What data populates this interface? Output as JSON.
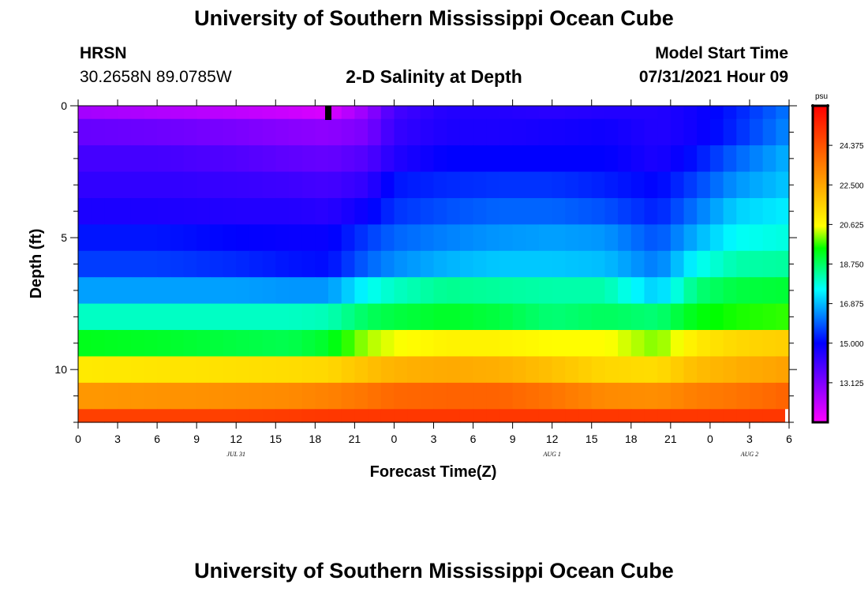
{
  "header": {
    "title": "University of Southern Mississippi Ocean Cube",
    "station": "HRSN",
    "coords": "30.2658N  89.0785W",
    "subtitle": "2-D Salinity at Depth",
    "model_start_label": "Model Start Time",
    "model_start_value": "07/31/2021 Hour 09"
  },
  "footer": {
    "title": "University of Southern Mississippi Ocean Cube"
  },
  "chart_data": {
    "type": "heatmap",
    "xlabel": "Forecast Time(Z)",
    "ylabel": "Depth (ft)",
    "x_range_hours": [
      0,
      54
    ],
    "x_tick_labels": [
      "0",
      "3",
      "6",
      "9",
      "12",
      "15",
      "18",
      "21",
      "0",
      "3",
      "6",
      "9",
      "12",
      "15",
      "18",
      "21",
      "0",
      "3",
      "6"
    ],
    "date_labels": [
      {
        "hour": 12,
        "label": "JUL 31"
      },
      {
        "hour": 36,
        "label": "AUG 1"
      },
      {
        "hour": 51,
        "label": "AUG 2"
      }
    ],
    "y_range": [
      0,
      12
    ],
    "y_ticks": [
      0,
      5,
      10
    ],
    "current_time_hour": 19,
    "depth_levels": [
      0.25,
      1.5,
      2.5,
      3.5,
      4.5,
      5.5,
      6.5,
      7.5,
      8.5,
      9.5,
      10.5,
      11.5
    ],
    "salinity_keyframes": {
      "hours": [
        0,
        6,
        12,
        16,
        19,
        22,
        24,
        28,
        32,
        36,
        40,
        44,
        47,
        50,
        54
      ],
      "rows": [
        [
          12.6,
          12.4,
          12.2,
          12.0,
          11.8,
          12.8,
          14.0,
          14.5,
          14.5,
          14.4,
          14.5,
          14.5,
          14.8,
          15.3,
          16.2
        ],
        [
          13.5,
          13.4,
          13.2,
          13.0,
          12.9,
          13.2,
          14.2,
          14.6,
          14.6,
          14.7,
          14.8,
          14.5,
          14.8,
          15.4,
          16.4
        ],
        [
          14.0,
          14.0,
          13.8,
          13.6,
          13.5,
          13.8,
          14.5,
          15.0,
          15.0,
          15.0,
          15.0,
          14.6,
          15.2,
          16.0,
          16.8
        ],
        [
          14.3,
          14.3,
          14.2,
          14.1,
          14.0,
          14.3,
          15.2,
          15.4,
          15.5,
          15.5,
          15.3,
          15.0,
          15.7,
          16.5,
          17.0
        ],
        [
          14.6,
          14.6,
          14.5,
          14.5,
          14.4,
          14.9,
          15.5,
          15.8,
          16.0,
          16.0,
          15.8,
          15.3,
          16.2,
          17.1,
          17.4
        ],
        [
          15.2,
          15.2,
          15.0,
          14.9,
          14.9,
          15.6,
          16.0,
          16.3,
          16.5,
          16.6,
          16.5,
          15.8,
          16.8,
          17.6,
          17.8
        ],
        [
          15.6,
          15.6,
          15.4,
          15.2,
          15.1,
          16.0,
          16.4,
          16.8,
          17.0,
          17.0,
          16.9,
          16.2,
          17.6,
          18.2,
          18.3
        ],
        [
          16.6,
          16.6,
          16.6,
          16.5,
          16.5,
          17.6,
          18.0,
          18.4,
          18.3,
          18.2,
          18.2,
          17.0,
          18.6,
          19.0,
          19.1
        ],
        [
          18.0,
          18.0,
          18.0,
          18.0,
          18.1,
          18.8,
          19.0,
          19.2,
          19.0,
          18.6,
          18.8,
          18.6,
          19.4,
          19.6,
          19.7
        ],
        [
          19.3,
          19.2,
          19.0,
          18.9,
          19.2,
          20.2,
          20.5,
          20.8,
          20.8,
          20.6,
          20.6,
          20.0,
          21.0,
          21.4,
          21.6
        ],
        [
          21.0,
          21.1,
          21.2,
          21.3,
          21.4,
          21.9,
          22.2,
          22.4,
          22.3,
          21.9,
          21.4,
          21.3,
          22.0,
          22.3,
          22.6
        ],
        [
          22.8,
          22.9,
          23.0,
          23.1,
          23.3,
          23.6,
          23.9,
          24.0,
          24.0,
          23.6,
          23.1,
          23.0,
          23.4,
          23.6,
          24.0
        ],
        [
          24.8,
          24.8,
          24.8,
          24.9,
          25.0,
          25.0,
          25.0,
          25.0,
          25.0,
          25.0,
          25.0,
          25.0,
          25.0,
          25.0,
          25.0
        ]
      ],
      "row_depth_bounds": [
        0,
        0.5,
        1.5,
        2.5,
        3.5,
        4.5,
        5.5,
        6.5,
        7.5,
        8.5,
        9.5,
        10.5,
        11.5,
        12
      ]
    },
    "colorbar": {
      "unit": "psu",
      "min": 11.25,
      "max": 26.25,
      "tick_labels": [
        "24.375",
        "22.500",
        "20.625",
        "18.750",
        "16.875",
        "15.000",
        "13.125"
      ],
      "tick_values": [
        24.375,
        22.5,
        20.625,
        18.75,
        16.875,
        15.0,
        13.125
      ]
    }
  }
}
